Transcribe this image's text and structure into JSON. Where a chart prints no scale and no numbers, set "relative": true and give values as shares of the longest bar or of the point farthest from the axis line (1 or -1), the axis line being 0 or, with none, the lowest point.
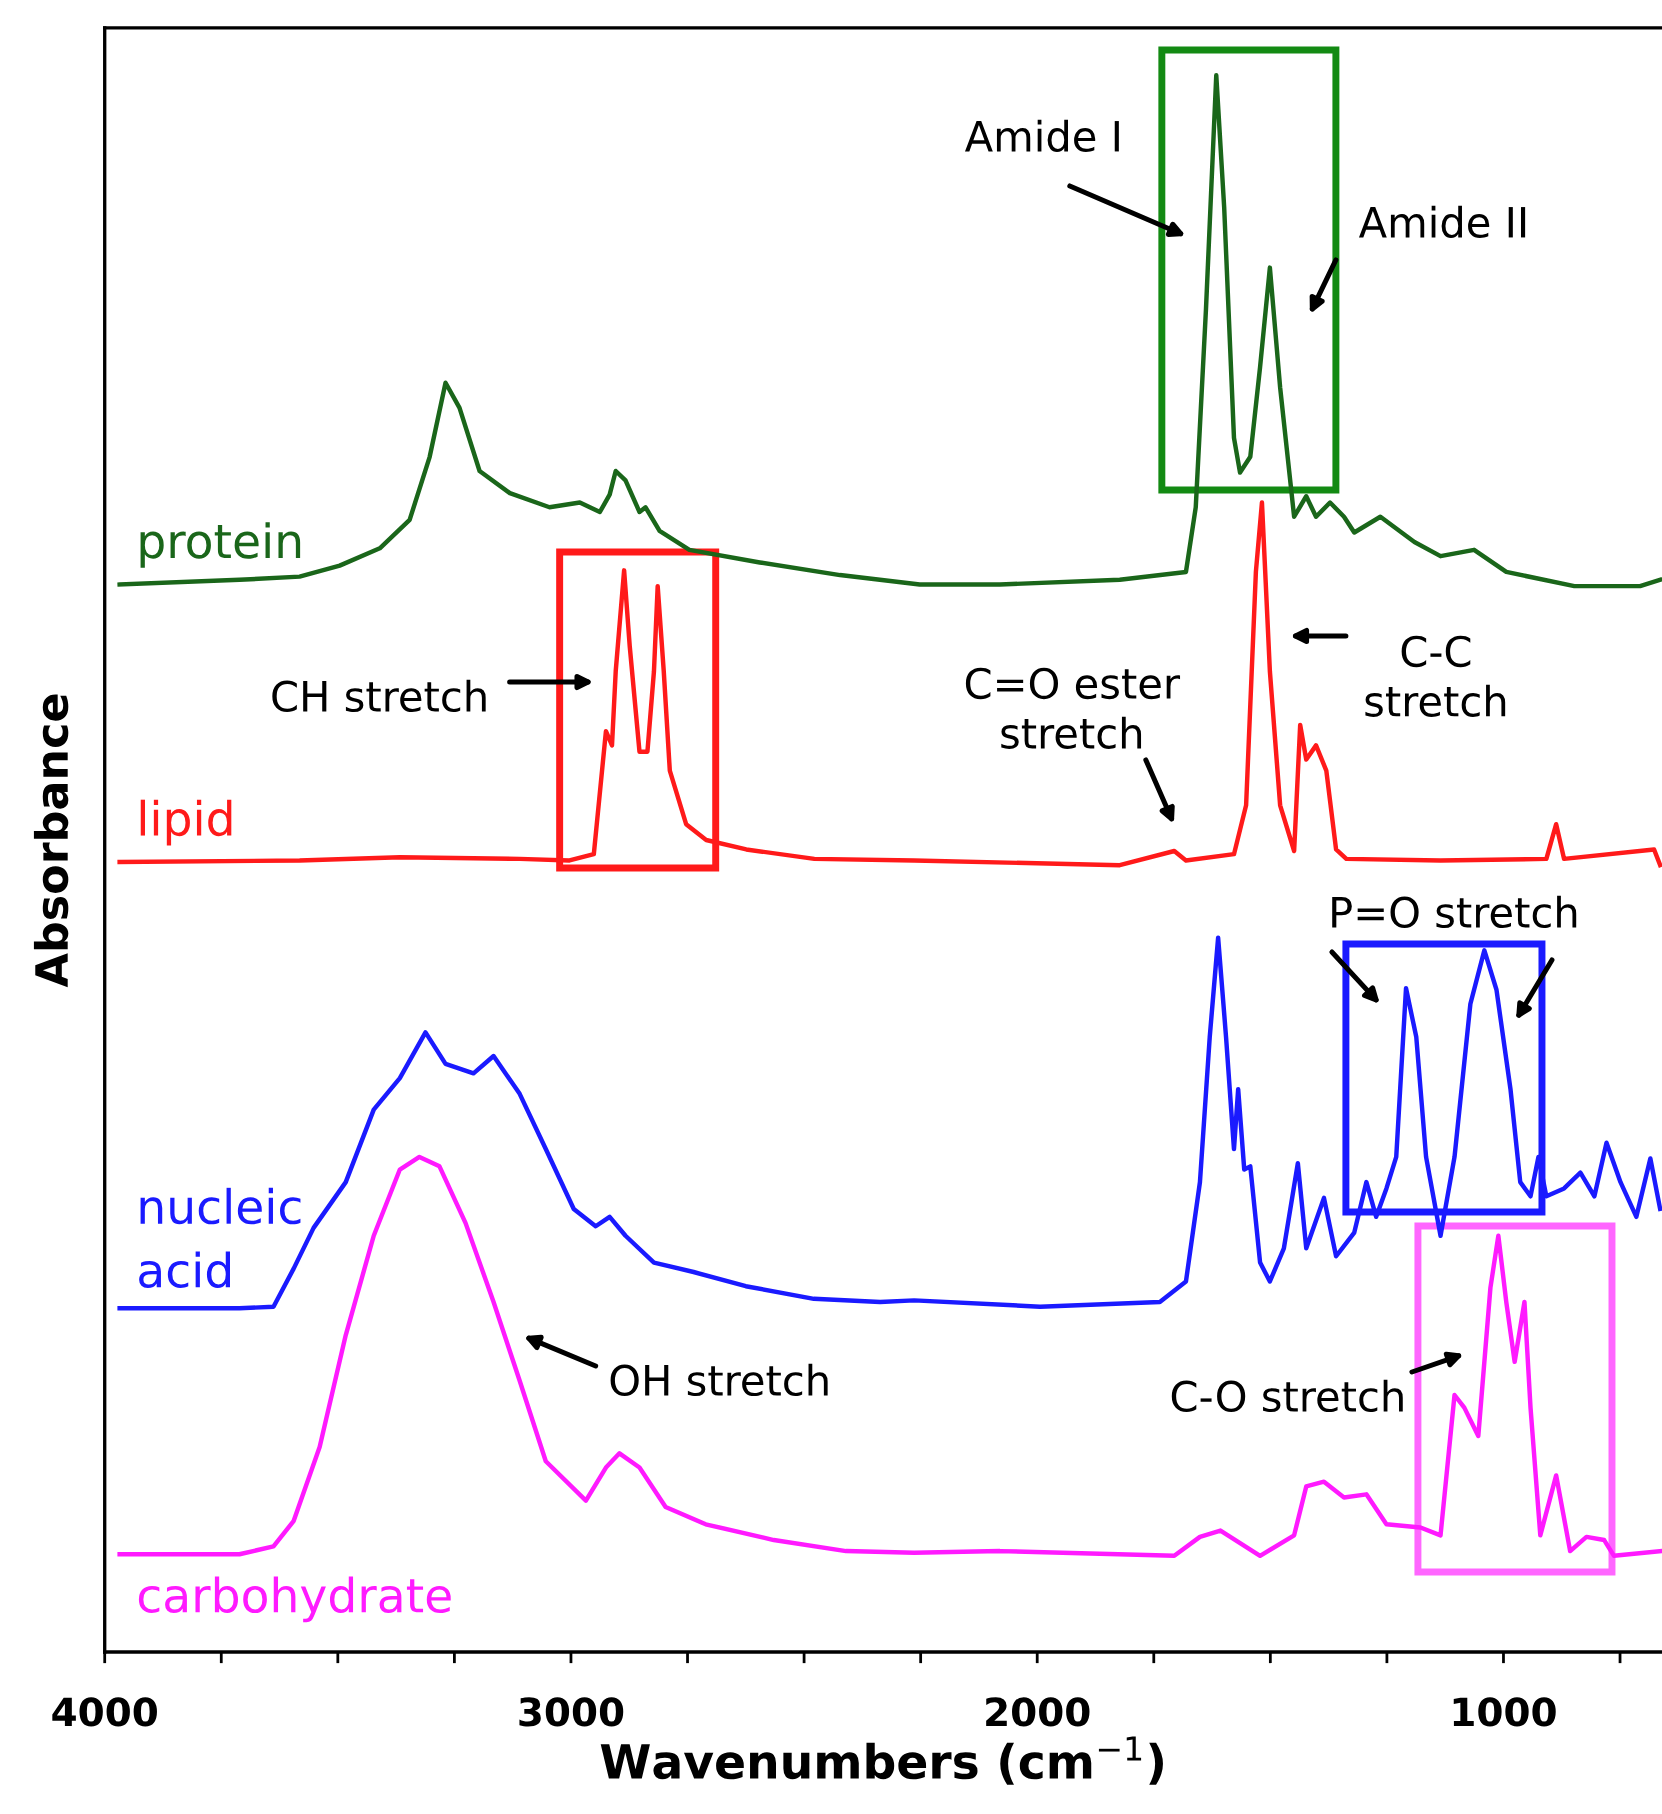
{
  "chart_data": {
    "type": "line",
    "relative": true,
    "xlabel": "Wavenumbers (cm$^{−1}$)",
    "ylabel": "Absorbance",
    "xlim": [
      4000,
      660
    ],
    "xticks": [
      4000,
      {
        "value": 3750,
        "label": null
      },
      {
        "value": 3500,
        "label": null
      },
      {
        "value": 3250,
        "label": null
      },
      3000,
      {
        "value": 2750,
        "label": null
      },
      {
        "value": 2500,
        "label": null
      },
      {
        "value": 2250,
        "label": null
      },
      2000,
      {
        "value": 1750,
        "label": null
      },
      {
        "value": 1500,
        "label": null
      },
      {
        "value": 1250,
        "label": null
      },
      1000,
      {
        "value": 750,
        "label": null
      }
    ],
    "grid": false,
    "legend": false,
    "tick_labels": "x",
    "line_style": "solid",
    "marker": "none",
    "series": [
      {
        "name": "protein",
        "color": "#1a661a",
        "x": [
          3968,
          3711,
          3582,
          3496,
          3410,
          3346,
          3303,
          3269,
          3239,
          3196,
          3131,
          3046,
          2981,
          2938,
          2917,
          2904,
          2883,
          2853,
          2840,
          2810,
          2746,
          2595,
          2423,
          2252,
          2080,
          1823,
          1681,
          1660,
          1638,
          1616,
          1599,
          1578,
          1565,
          1543,
          1522,
          1501,
          1479,
          1449,
          1423,
          1402,
          1372,
          1342,
          1320,
          1264,
          1191,
          1135,
          1063,
          994,
          848,
          707,
          664
        ],
        "values": [
          0.677,
          0.68,
          0.682,
          0.689,
          0.7,
          0.718,
          0.758,
          0.805,
          0.789,
          0.749,
          0.735,
          0.726,
          0.729,
          0.723,
          0.734,
          0.749,
          0.743,
          0.723,
          0.726,
          0.711,
          0.699,
          0.691,
          0.683,
          0.677,
          0.677,
          0.68,
          0.685,
          0.726,
          0.852,
          1.0,
          0.916,
          0.77,
          0.748,
          0.758,
          0.815,
          0.878,
          0.802,
          0.72,
          0.733,
          0.72,
          0.729,
          0.72,
          0.71,
          0.72,
          0.704,
          0.695,
          0.699,
          0.685,
          0.676,
          0.676,
          0.68
        ]
      },
      {
        "name": "lipid",
        "color": "#ff1a1a",
        "x": [
          3968,
          3582,
          3367,
          3110,
          3003,
          2951,
          2925,
          2912,
          2904,
          2886,
          2874,
          2853,
          2836,
          2822,
          2814,
          2801,
          2788,
          2753,
          2710,
          2624,
          2478,
          2264,
          1823,
          1706,
          1681,
          1578,
          1552,
          1531,
          1518,
          1501,
          1479,
          1449,
          1436,
          1423,
          1402,
          1380,
          1359,
          1337,
          1135,
          908,
          887,
          870,
          677,
          664
        ],
        "values": [
          0.501,
          0.502,
          0.504,
          0.503,
          0.502,
          0.506,
          0.584,
          0.575,
          0.622,
          0.686,
          0.638,
          0.571,
          0.571,
          0.622,
          0.676,
          0.622,
          0.559,
          0.525,
          0.515,
          0.509,
          0.503,
          0.502,
          0.499,
          0.508,
          0.502,
          0.506,
          0.537,
          0.685,
          0.729,
          0.622,
          0.537,
          0.508,
          0.588,
          0.566,
          0.575,
          0.559,
          0.509,
          0.503,
          0.502,
          0.503,
          0.525,
          0.503,
          0.509,
          0.499
        ]
      },
      {
        "name": "nucleic\nacid",
        "color": "#1a1aff",
        "x": [
          3968,
          3711,
          3638,
          3595,
          3552,
          3483,
          3423,
          3367,
          3312,
          3269,
          3209,
          3166,
          3110,
          3054,
          2994,
          2947,
          2917,
          2883,
          2822,
          2737,
          2625,
          2479,
          2337,
          2264,
          1994,
          1737,
          1681,
          1651,
          1630,
          1612,
          1595,
          1578,
          1569,
          1556,
          1543,
          1522,
          1501,
          1471,
          1441,
          1423,
          1385,
          1359,
          1320,
          1294,
          1273,
          1251,
          1230,
          1209,
          1187,
          1166,
          1135,
          1105,
          1071,
          1041,
          1015,
          985,
          964,
          942,
          925,
          908,
          870,
          835,
          805,
          779,
          749,
          715,
          685,
          664
        ],
        "values": [
          0.218,
          0.218,
          0.219,
          0.243,
          0.269,
          0.298,
          0.344,
          0.364,
          0.393,
          0.373,
          0.367,
          0.378,
          0.354,
          0.319,
          0.281,
          0.27,
          0.276,
          0.264,
          0.247,
          0.241,
          0.232,
          0.224,
          0.222,
          0.223,
          0.219,
          0.222,
          0.235,
          0.298,
          0.39,
          0.453,
          0.39,
          0.319,
          0.357,
          0.306,
          0.308,
          0.247,
          0.235,
          0.256,
          0.31,
          0.256,
          0.288,
          0.251,
          0.266,
          0.298,
          0.276,
          0.294,
          0.314,
          0.421,
          0.39,
          0.314,
          0.264,
          0.314,
          0.411,
          0.445,
          0.42,
          0.357,
          0.298,
          0.289,
          0.314,
          0.289,
          0.294,
          0.304,
          0.289,
          0.323,
          0.298,
          0.276,
          0.313,
          0.281
        ]
      },
      {
        "name": "carbohydrate",
        "color": "#ff1aff",
        "x": [
          3968,
          3711,
          3638,
          3595,
          3539,
          3483,
          3423,
          3367,
          3325,
          3282,
          3226,
          3166,
          3110,
          3054,
          2968,
          2925,
          2896,
          2853,
          2797,
          2711,
          2565,
          2410,
          2264,
          2080,
          1706,
          1651,
          1607,
          1522,
          1449,
          1423,
          1385,
          1342,
          1294,
          1251,
          1178,
          1135,
          1105,
          1084,
          1054,
          1028,
          1011,
          994,
          976,
          955,
          942,
          921,
          887,
          857,
          822,
          784,
          763,
          664
        ],
        "values": [
          0.062,
          0.062,
          0.067,
          0.083,
          0.13,
          0.201,
          0.264,
          0.306,
          0.314,
          0.308,
          0.272,
          0.222,
          0.172,
          0.121,
          0.096,
          0.117,
          0.126,
          0.117,
          0.092,
          0.081,
          0.071,
          0.064,
          0.063,
          0.064,
          0.061,
          0.073,
          0.077,
          0.061,
          0.074,
          0.105,
          0.108,
          0.098,
          0.1,
          0.081,
          0.079,
          0.074,
          0.163,
          0.155,
          0.137,
          0.231,
          0.264,
          0.222,
          0.184,
          0.222,
          0.155,
          0.074,
          0.112,
          0.064,
          0.073,
          0.071,
          0.061,
          0.064
        ]
      }
    ],
    "annotations": [
      "Amide I",
      "Amide II",
      "CH stretch",
      "C=O ester\nstretch",
      "C-C\nstretch",
      "P=O stretch",
      "OH stretch",
      "C-O stretch"
    ]
  }
}
